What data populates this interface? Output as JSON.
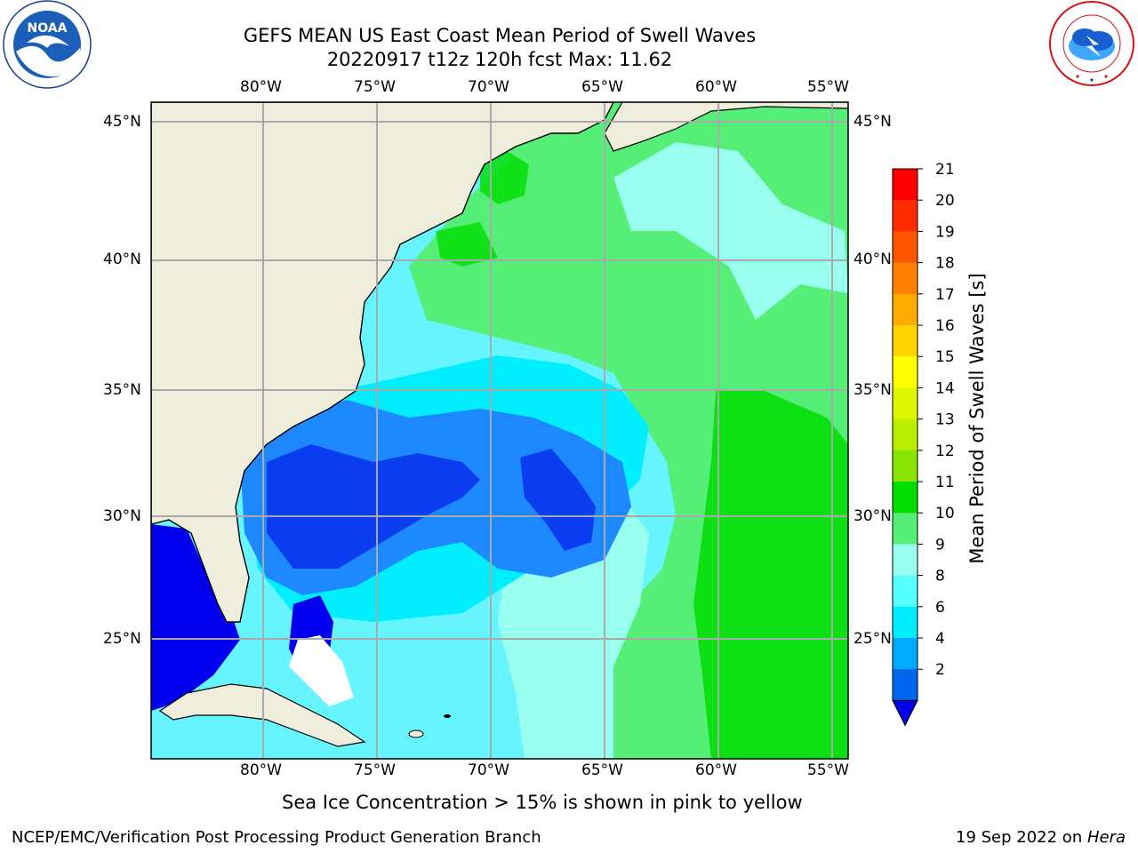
{
  "header": {
    "title_line1": "GEFS MEAN US East Coast Mean Period of Swell Waves",
    "title_line2": "20220917 t12z 120h fcst   Max: 11.62"
  },
  "map": {
    "lon_ticks": [
      "80°W",
      "75°W",
      "70°W",
      "65°W",
      "60°W",
      "55°W"
    ],
    "lat_ticks_left": [
      "45°N",
      "40°N",
      "35°N",
      "30°N",
      "25°N"
    ],
    "lat_ticks_right": [
      "45°N",
      "40°N",
      "35°N",
      "30°N",
      "25°N"
    ],
    "land_color": "#efeedd",
    "grid_color": "#a9a9a9"
  },
  "colorbar": {
    "label": "Mean Period of Swell Waves [s]",
    "ticks": [
      "21",
      "20",
      "19",
      "18",
      "17",
      "16",
      "15",
      "14",
      "13",
      "12",
      "11",
      "10",
      "9",
      "8",
      "6",
      "4",
      "2"
    ],
    "colors_top_to_bottom": [
      "#ff0000",
      "#ff2b00",
      "#ff5500",
      "#ff8000",
      "#ffaa00",
      "#ffd400",
      "#ffff00",
      "#ddf700",
      "#bbef00",
      "#88e400",
      "#00dd00",
      "#55ee77",
      "#99ffee",
      "#55ffff",
      "#00eeff",
      "#00aaff",
      "#0066ee"
    ],
    "under_color": "#0000ee"
  },
  "footer": {
    "sea_ice_note": "Sea Ice Concentration > 15% is shown in pink to yellow",
    "credit": "NCEP/EMC/Verification Post Processing Product Generation Branch",
    "date_prefix": "19 Sep 2022 on ",
    "machine": "Hera"
  },
  "logos": {
    "noaa_text": "NOAA",
    "nws_text": "NATIONAL WEATHER SERVICE"
  }
}
